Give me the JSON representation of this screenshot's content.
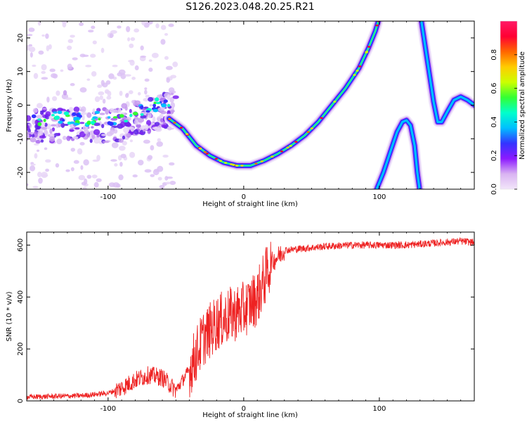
{
  "figure_title": "S126.2023.048.20.25.R21",
  "chart_data": [
    {
      "type": "heatmap",
      "xlabel": "Height of straight line (km)",
      "ylabel": "Frequency (Hz)",
      "xlim": [
        -160,
        170
      ],
      "ylim": [
        -25,
        25
      ],
      "xticks": [
        -100,
        0,
        100
      ],
      "yticks": [
        -20,
        -10,
        0,
        10,
        20
      ],
      "colorbar": {
        "label": "Normalized spectral amplitude",
        "range": [
          0,
          1
        ],
        "ticks": [
          "0.0",
          "0.2",
          "0.4",
          "0.6",
          "0.8"
        ],
        "colormap": [
          "#f2e6fa",
          "#d9b3f2",
          "#8c1aff",
          "#3333ff",
          "#00bfff",
          "#00ffcc",
          "#33ff33",
          "#ccff00",
          "#ffcc00",
          "#ff6600",
          "#ff0033",
          "#ff1a66"
        ]
      },
      "ridges": [
        {
          "name": "main",
          "points": [
            [
              -55,
              -4
            ],
            [
              -45,
              -7
            ],
            [
              -35,
              -12
            ],
            [
              -25,
              -15
            ],
            [
              -15,
              -17
            ],
            [
              -5,
              -18
            ],
            [
              5,
              -18
            ],
            [
              15,
              -16.5
            ],
            [
              25,
              -14.5
            ],
            [
              35,
              -12
            ],
            [
              45,
              -9
            ],
            [
              55,
              -5
            ],
            [
              65,
              0
            ],
            [
              75,
              5
            ],
            [
              85,
              11
            ],
            [
              92,
              17
            ],
            [
              97,
              22
            ],
            [
              100,
              26
            ]
          ]
        },
        {
          "name": "left-lower",
          "points": [
            [
              98,
              -25
            ],
            [
              103,
              -20
            ],
            [
              108,
              -14
            ],
            [
              113,
              -8
            ],
            [
              117,
              -5
            ],
            [
              120,
              -4.5
            ],
            [
              123,
              -6
            ],
            [
              126,
              -12
            ],
            [
              128,
              -20
            ],
            [
              130,
              -26
            ]
          ]
        },
        {
          "name": "right-upper",
          "points": [
            [
              131,
              25
            ],
            [
              134,
              17
            ],
            [
              137,
              9
            ],
            [
              140,
              1
            ],
            [
              143,
              -5
            ],
            [
              146,
              -5
            ],
            [
              150,
              -2
            ],
            [
              155,
              1.5
            ],
            [
              160,
              2.5
            ],
            [
              165,
              1.5
            ],
            [
              170,
              0
            ]
          ]
        }
      ]
    },
    {
      "type": "line",
      "xlabel": "Height of straight line (km)",
      "ylabel": "SNR (10 * v/v)",
      "xlim": [
        -160,
        170
      ],
      "ylim": [
        0,
        650
      ],
      "xticks": [
        -100,
        0,
        100
      ],
      "yticks": [
        0,
        200,
        400,
        600
      ],
      "color": "#ee2222",
      "trend": [
        [
          -160,
          15
        ],
        [
          -120,
          20
        ],
        [
          -100,
          30
        ],
        [
          -90,
          50
        ],
        [
          -80,
          80
        ],
        [
          -70,
          100
        ],
        [
          -60,
          90
        ],
        [
          -50,
          40
        ],
        [
          -40,
          120
        ],
        [
          -30,
          240
        ],
        [
          -20,
          300
        ],
        [
          -10,
          330
        ],
        [
          0,
          350
        ],
        [
          10,
          400
        ],
        [
          20,
          530
        ],
        [
          30,
          580
        ],
        [
          60,
          595
        ],
        [
          80,
          600
        ],
        [
          120,
          600
        ],
        [
          160,
          615
        ],
        [
          170,
          610
        ]
      ]
    }
  ]
}
